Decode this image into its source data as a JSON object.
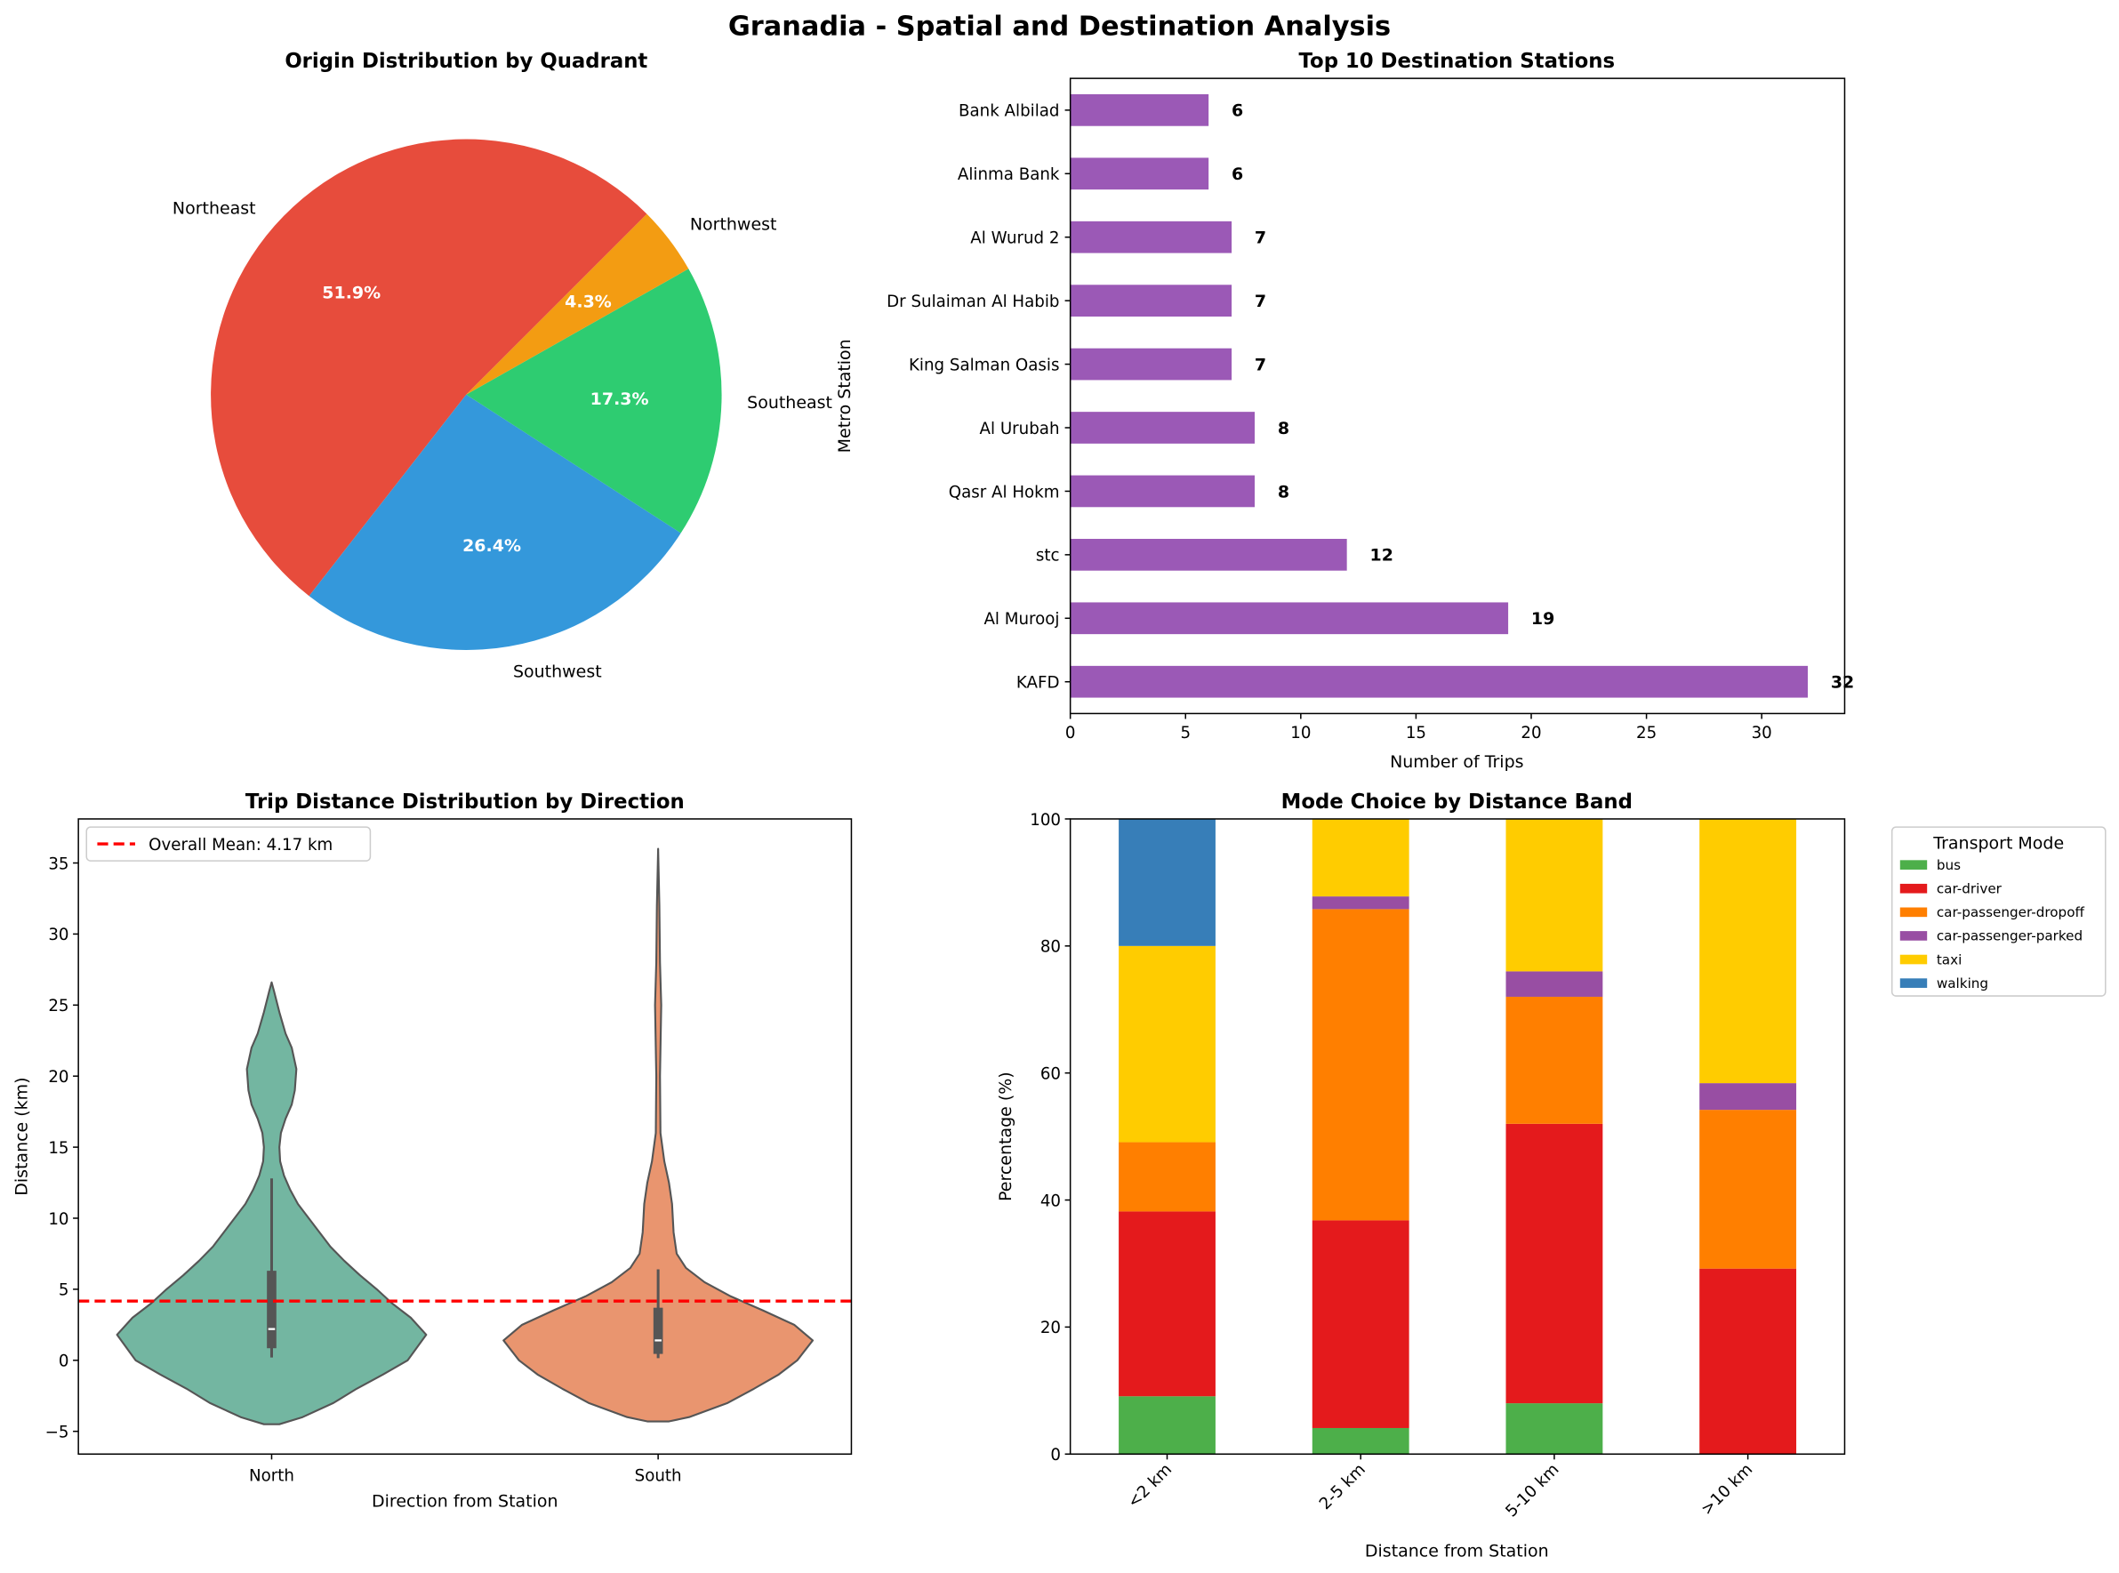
{
  "figure_title": "Granadia - Spatial and Destination Analysis",
  "chart_data": [
    {
      "type": "pie",
      "title": "Origin Distribution by Quadrant",
      "labels": [
        "Northeast",
        "Southwest",
        "Southeast",
        "Northwest"
      ],
      "values": [
        51.9,
        26.4,
        17.3,
        4.3
      ],
      "pct_labels": [
        "51.9%",
        "26.4%",
        "17.3%",
        "4.3%"
      ],
      "colors": [
        "#e74c3c",
        "#3498db",
        "#2ecc71",
        "#f39c12"
      ],
      "start_angle": 45
    },
    {
      "type": "bar",
      "orientation": "horizontal",
      "title": "Top 10 Destination Stations",
      "xlabel": "Number of Trips",
      "ylabel": "Metro Station",
      "categories": [
        "KAFD",
        "Al Murooj",
        "stc",
        "Qasr Al Hokm",
        "Al Urubah",
        "King Salman Oasis",
        "Dr Sulaiman Al Habib",
        "Al Wurud 2",
        "Alinma Bank",
        "Bank Albilad"
      ],
      "values": [
        32,
        19,
        12,
        8,
        8,
        7,
        7,
        7,
        6,
        6
      ],
      "xlim": [
        0,
        33.6
      ],
      "xticks": [
        0,
        5,
        10,
        15,
        20,
        25,
        30
      ],
      "color": "#9b59b6"
    },
    {
      "type": "violin",
      "title": "Trip Distance Distribution by Direction",
      "xlabel": "Direction from Station",
      "ylabel": "Distance (km)",
      "ylim": [
        -6.6,
        38.1
      ],
      "yticks": [
        -5,
        0,
        5,
        10,
        15,
        20,
        25,
        30,
        35
      ],
      "mean_line": {
        "value": 4.17,
        "label": "Overall Mean: 4.17 km",
        "color": "#ff0000"
      },
      "legend_position": "upper-left",
      "series": [
        {
          "name": "North",
          "color": "#73b6a1",
          "median": 2.2,
          "q1": 0.85,
          "q3": 6.3,
          "whisker_low": 0.2,
          "whisker_high": 12.8,
          "kde_profile": [
            [
              -4.5,
              0.05
            ],
            [
              -4,
              0.2
            ],
            [
              -3,
              0.4
            ],
            [
              -2,
              0.55
            ],
            [
              -1,
              0.72
            ],
            [
              0,
              0.88
            ],
            [
              1.8,
              1.0
            ],
            [
              3,
              0.9
            ],
            [
              4,
              0.78
            ],
            [
              5,
              0.68
            ],
            [
              6,
              0.57
            ],
            [
              7,
              0.47
            ],
            [
              8,
              0.38
            ],
            [
              9,
              0.31
            ],
            [
              10,
              0.24
            ],
            [
              11,
              0.17
            ],
            [
              12,
              0.12
            ],
            [
              13,
              0.08
            ],
            [
              14,
              0.055
            ],
            [
              15,
              0.05
            ],
            [
              16,
              0.06
            ],
            [
              17,
              0.09
            ],
            [
              18,
              0.13
            ],
            [
              19,
              0.15
            ],
            [
              20.5,
              0.16
            ],
            [
              22,
              0.13
            ],
            [
              23,
              0.09
            ],
            [
              24.5,
              0.05
            ],
            [
              26,
              0.015
            ],
            [
              26.6,
              0
            ]
          ]
        },
        {
          "name": "South",
          "color": "#e9956f",
          "median": 1.4,
          "q1": 0.45,
          "q3": 3.7,
          "whisker_low": 0.15,
          "whisker_high": 6.4,
          "kde_profile": [
            [
              -4.3,
              0.07
            ],
            [
              -4,
              0.2
            ],
            [
              -3,
              0.45
            ],
            [
              -2,
              0.62
            ],
            [
              -1,
              0.78
            ],
            [
              0,
              0.9
            ],
            [
              1.4,
              1.0
            ],
            [
              2.5,
              0.88
            ],
            [
              3.5,
              0.68
            ],
            [
              4.5,
              0.47
            ],
            [
              5.5,
              0.3
            ],
            [
              6.5,
              0.18
            ],
            [
              7.5,
              0.12
            ],
            [
              9,
              0.1
            ],
            [
              11,
              0.09
            ],
            [
              12.5,
              0.07
            ],
            [
              14,
              0.04
            ],
            [
              16,
              0.015
            ],
            [
              20,
              0.012
            ],
            [
              25,
              0.02
            ],
            [
              28,
              0.012
            ],
            [
              32,
              0.008
            ],
            [
              36,
              0
            ]
          ]
        }
      ]
    },
    {
      "type": "bar",
      "stacked": true,
      "title": "Mode Choice by Distance Band",
      "xlabel": "Distance from Station",
      "ylabel": "Percentage (%)",
      "categories": [
        "<2 km",
        "2-5 km",
        "5-10 km",
        ">10 km"
      ],
      "ylim": [
        0,
        100
      ],
      "yticks": [
        0,
        20,
        40,
        60,
        80,
        100
      ],
      "legend_title": "Transport Mode",
      "legend_position": "outside-upper-right",
      "series": [
        {
          "name": "bus",
          "color": "#4daf4a",
          "values": [
            9.1,
            4.1,
            8.0,
            0
          ]
        },
        {
          "name": "car-driver",
          "color": "#e41a1c",
          "values": [
            29.1,
            32.7,
            44.0,
            29.2
          ]
        },
        {
          "name": "car-passenger-dropoff",
          "color": "#ff7f00",
          "values": [
            10.9,
            49.0,
            20.0,
            25.0
          ]
        },
        {
          "name": "car-passenger-parked",
          "color": "#984ea3",
          "values": [
            0,
            2.0,
            4.0,
            4.2
          ]
        },
        {
          "name": "taxi",
          "color": "#ffcc00",
          "values": [
            30.9,
            12.2,
            24.0,
            41.6
          ]
        },
        {
          "name": "walking",
          "color": "#377eb8",
          "values": [
            20.0,
            0,
            0,
            0
          ]
        }
      ]
    }
  ]
}
